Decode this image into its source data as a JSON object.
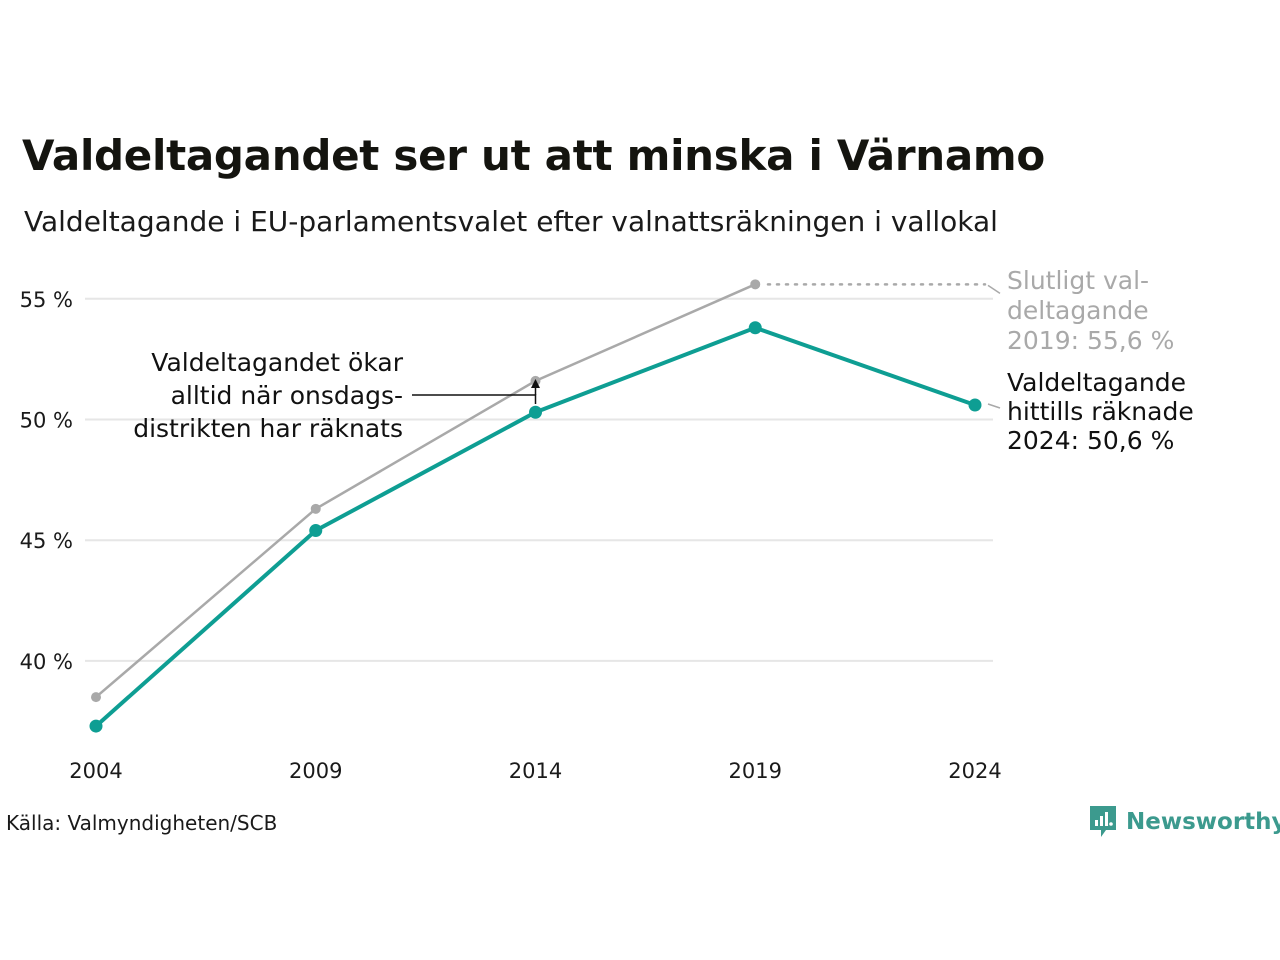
{
  "title": "Valdeltagandet ser ut att minska i Värnamo",
  "subtitle": "Valdeltagande i EU-parlamentsvalet efter valnattsräkningen i vallokal",
  "source": "Källa: Valmyndigheten/SCB",
  "brand": "Newsworthy",
  "colors": {
    "final": "#a9a9a9",
    "preliminary": "#0e9e93",
    "grid": "#e6e6e6",
    "annotation_dark": "#111111",
    "annotation_gray": "#a9a9a9"
  },
  "annotations": {
    "final_label": [
      "Slutligt val-",
      "deltagande",
      "2019: 55,6 %"
    ],
    "prelim_label": [
      "Valdeltagande",
      "hittills räknade",
      "2024: 50,6 %"
    ],
    "note": [
      "Valdeltagandet ökar",
      "alltid när onsdags-",
      "distrikten har räknats"
    ]
  },
  "chart_data": {
    "type": "line",
    "x": [
      2004,
      2009,
      2014,
      2019,
      2024
    ],
    "x_tick_labels": [
      "2004",
      "2009",
      "2014",
      "2019",
      "2024"
    ],
    "y_ticks": [
      40,
      45,
      50,
      55
    ],
    "y_tick_labels": [
      "40 %",
      "45 %",
      "50 %",
      "55 %"
    ],
    "ylim": [
      36,
      57
    ],
    "grid": true,
    "series": [
      {
        "key": "final",
        "values": [
          38.5,
          46.3,
          51.6,
          55.6,
          null
        ]
      },
      {
        "key": "preliminary",
        "values": [
          37.3,
          45.4,
          50.3,
          53.8,
          50.6
        ]
      }
    ]
  }
}
